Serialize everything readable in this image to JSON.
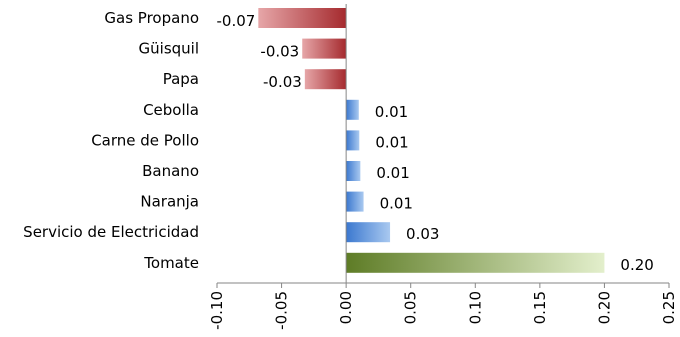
{
  "chart_data": {
    "type": "bar",
    "orientation": "horizontal",
    "title": "",
    "xlabel": "",
    "ylabel": "",
    "categories": [
      "Gas Propano",
      "Güisquil",
      "Papa",
      "Cebolla",
      "Carne de Pollo",
      "Banano",
      "Naranja",
      "Servicio de Electricidad",
      "Tomate"
    ],
    "values": [
      -0.068,
      -0.034,
      -0.032,
      0.0098,
      0.0102,
      0.011,
      0.0135,
      0.034,
      0.2
    ],
    "value_labels": [
      "-0.07",
      "-0.03",
      "-0.03",
      "0.01",
      "0.01",
      "0.01",
      "0.01",
      "0.03",
      "0.20"
    ],
    "xlim": [
      -0.1,
      0.25
    ],
    "xticks": [
      "-0.10",
      "-0.05",
      "0.00",
      "0.05",
      "0.10",
      "0.15",
      "0.20",
      "0.25"
    ],
    "grid": false,
    "legend": "none",
    "colors": {
      "negative_dark": "#a52a2e",
      "negative_light": "#e6a6a8",
      "positive_dark": "#3b78cf",
      "positive_light": "#a9c9f0",
      "top_dark": "#5e7c26",
      "top_light": "#e3efcc",
      "axis": "#868686"
    }
  }
}
